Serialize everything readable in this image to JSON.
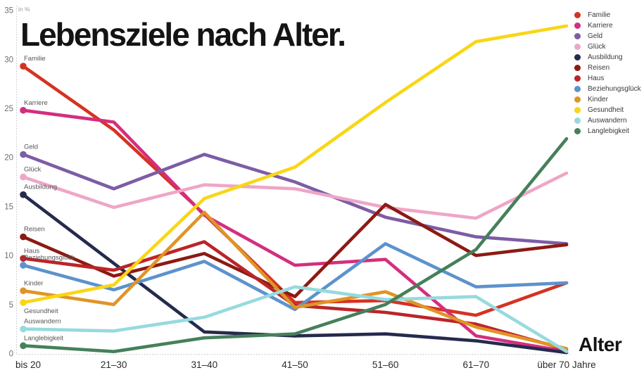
{
  "title": "Lebensziele nach Alter.",
  "y_axis": {
    "unit_label": "in %",
    "ticks": [
      0,
      5,
      10,
      15,
      20,
      25,
      30,
      35
    ],
    "max": 35
  },
  "x_axis": {
    "title": "Alter",
    "categories": [
      "bis 20",
      "21–30",
      "31–40",
      "41–50",
      "51–60",
      "61–70",
      "über 70 Jahre"
    ]
  },
  "chart_data": {
    "type": "line",
    "title": "Lebensziele nach Alter.",
    "ylabel": "in %",
    "xlabel": "Alter",
    "ylim": [
      0,
      35
    ],
    "grid": false,
    "legend_position": "right",
    "categories": [
      "bis 20",
      "21–30",
      "31–40",
      "41–50",
      "51–60",
      "61–70",
      "über 70 Jahre"
    ],
    "series": [
      {
        "name": "Familie",
        "color": "#d63222",
        "values": [
          29.3,
          22.8,
          14.2,
          5.2,
          5.4,
          3.9,
          7.2
        ]
      },
      {
        "name": "Karriere",
        "color": "#d42e7e",
        "values": [
          24.8,
          23.6,
          14.1,
          9.0,
          9.6,
          1.8,
          0.2
        ]
      },
      {
        "name": "Geld",
        "color": "#7d5ca5",
        "values": [
          20.3,
          16.8,
          20.3,
          17.5,
          13.9,
          11.9,
          11.2
        ]
      },
      {
        "name": "Glück",
        "color": "#efa6c6",
        "values": [
          18.0,
          14.9,
          17.2,
          16.8,
          14.9,
          13.8,
          18.4
        ]
      },
      {
        "name": "Ausbildung",
        "color": "#252a4e",
        "values": [
          16.2,
          9.2,
          2.2,
          1.8,
          2.0,
          1.3,
          0.1
        ]
      },
      {
        "name": "Reisen",
        "color": "#8c1a13",
        "values": [
          11.9,
          7.9,
          10.2,
          5.8,
          15.2,
          10.0,
          11.1
        ]
      },
      {
        "name": "Haus",
        "color": "#bb2428",
        "values": [
          9.7,
          8.5,
          11.4,
          4.9,
          4.2,
          3.0,
          0.4
        ]
      },
      {
        "name": "Beziehungsglück",
        "color": "#5d92cc",
        "values": [
          9.0,
          6.5,
          9.4,
          4.5,
          11.2,
          6.8,
          7.2
        ]
      },
      {
        "name": "Kinder",
        "color": "#e09426",
        "values": [
          6.4,
          5.0,
          14.4,
          4.7,
          6.3,
          2.7,
          0.5
        ]
      },
      {
        "name": "Gesundheit",
        "color": "#f9d616",
        "values": [
          5.2,
          7.0,
          15.8,
          19.0,
          25.6,
          31.8,
          33.4
        ]
      },
      {
        "name": "Auswandern",
        "color": "#96dade",
        "values": [
          2.5,
          2.3,
          3.7,
          6.8,
          5.5,
          5.8,
          0.2
        ]
      },
      {
        "name": "Langlebigkeit",
        "color": "#45805a",
        "values": [
          0.8,
          0.2,
          1.6,
          2.0,
          5.0,
          10.6,
          21.9
        ]
      }
    ]
  }
}
